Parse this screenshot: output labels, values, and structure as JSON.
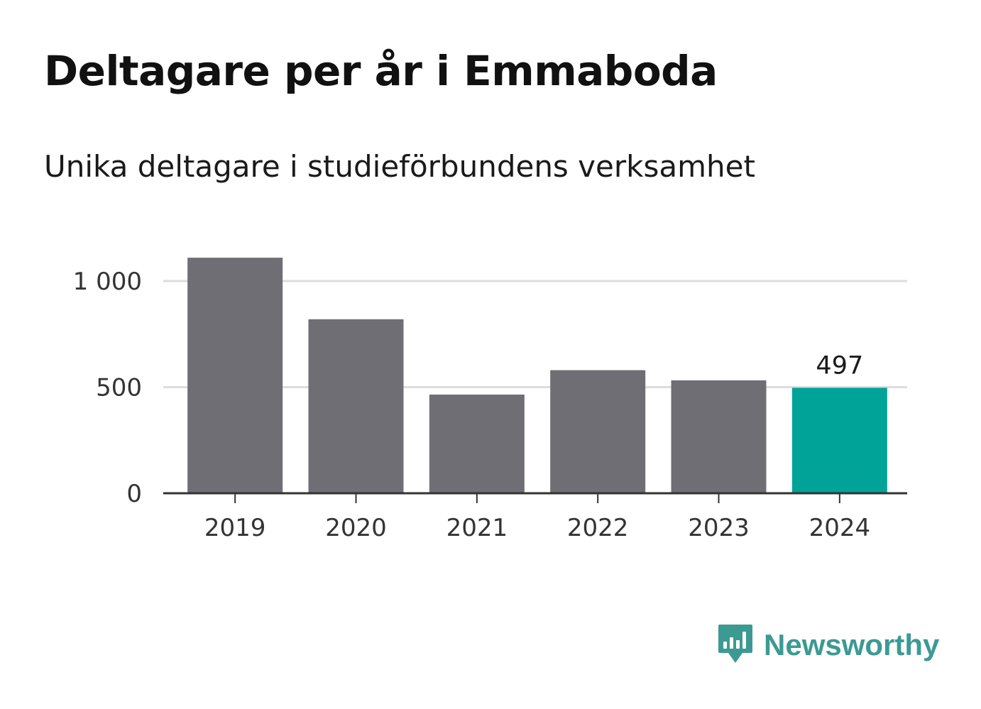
{
  "title": "Deltagare per år i Emmaboda",
  "subtitle": "Unika deltagare i studieförbundens verksamhet",
  "brand": {
    "name": "Newsworthy",
    "icon": "newsworthy-logo-icon",
    "color": "#3c9a92"
  },
  "chart_data": {
    "type": "bar",
    "categories": [
      "2019",
      "2020",
      "2021",
      "2022",
      "2023",
      "2024"
    ],
    "values": [
      1110,
      820,
      465,
      580,
      532,
      497
    ],
    "ylim": [
      0,
      1000
    ],
    "yticks": [
      0,
      500,
      1000
    ],
    "ytick_labels": [
      "0",
      "500",
      "1 000"
    ],
    "grid": true,
    "colors": {
      "default": "#6f6e74",
      "highlight": "#00a398"
    },
    "highlight_index": 5,
    "data_labels": [
      {
        "index": 5,
        "text": "497"
      }
    ]
  }
}
